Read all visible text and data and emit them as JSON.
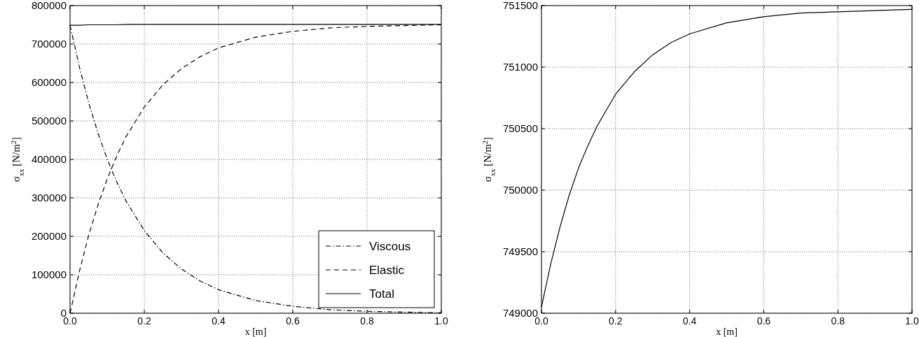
{
  "chart_data": [
    {
      "type": "line",
      "xlabel": "x  [m]",
      "ylabel": "σ$_{xx}$  [N/m$^{2}$]",
      "xlim": [
        0,
        1
      ],
      "ylim": [
        0,
        800000
      ],
      "xticks": [
        {
          "value": 0,
          "label": "0.0"
        },
        {
          "value": 0.2,
          "label": "0.2"
        },
        {
          "value": 0.4,
          "label": "0.4"
        },
        {
          "value": 0.6,
          "label": "0.6"
        },
        {
          "value": 0.8,
          "label": "0.8"
        },
        {
          "value": 1,
          "label": "1.0"
        }
      ],
      "yticks": [
        0,
        100000,
        200000,
        300000,
        400000,
        500000,
        600000,
        700000,
        800000
      ],
      "grid": true,
      "legend": "bottom right",
      "x": [
        0,
        0.025,
        0.05,
        0.075,
        0.1,
        0.125,
        0.15,
        0.2,
        0.25,
        0.3,
        0.35,
        0.4,
        0.5,
        0.6,
        0.7,
        0.8,
        0.9,
        1.0
      ],
      "series": [
        {
          "name": "Viscous",
          "color": "#000000",
          "line_style": "dashdot",
          "values": [
            749000,
            641000,
            548000,
            469000,
            401000,
            343000,
            293000,
            215000,
            157000,
            115000,
            84000,
            61000,
            33000,
            18000,
            9000,
            5000,
            3000,
            1000
          ]
        },
        {
          "name": "Elastic",
          "color": "#000000",
          "line_style": "dashed",
          "values": [
            0,
            108000,
            202000,
            281000,
            349000,
            407000,
            458000,
            536000,
            594000,
            636000,
            667000,
            690000,
            718000,
            733000,
            742000,
            746000,
            748000,
            750000
          ]
        },
        {
          "name": "Total",
          "color": "#000000",
          "line_style": "solid",
          "values": [
            749000,
            749000,
            750000,
            750000,
            750000,
            750000,
            751000,
            751000,
            751000,
            751000,
            751000,
            751000,
            751000,
            751000,
            751000,
            751000,
            751000,
            751000
          ]
        }
      ]
    },
    {
      "type": "line",
      "xlabel": "x  [m]",
      "ylabel": "σ$_{xx}$  [N/m$^{2}$]",
      "xlim": [
        0,
        1
      ],
      "ylim": [
        749000,
        751500
      ],
      "xticks": [
        {
          "value": 0,
          "label": "0.0"
        },
        {
          "value": 0.2,
          "label": "0.2"
        },
        {
          "value": 0.4,
          "label": "0.4"
        },
        {
          "value": 0.6,
          "label": "0.6"
        },
        {
          "value": 0.8,
          "label": "0.8"
        },
        {
          "value": 1,
          "label": "1.0"
        }
      ],
      "yticks": [
        749000,
        749500,
        750000,
        750500,
        751000,
        751500
      ],
      "grid": true,
      "x": [
        0,
        0.025,
        0.05,
        0.075,
        0.1,
        0.125,
        0.15,
        0.2,
        0.25,
        0.3,
        0.35,
        0.4,
        0.5,
        0.6,
        0.7,
        0.8,
        0.9,
        1.0
      ],
      "series": [
        {
          "color": "#000000",
          "line_style": "solid",
          "values": [
            749050,
            749400,
            749700,
            749960,
            750180,
            750360,
            750520,
            750780,
            750960,
            751100,
            751200,
            751270,
            751360,
            751410,
            751440,
            751450,
            751460,
            751470
          ]
        }
      ]
    }
  ]
}
